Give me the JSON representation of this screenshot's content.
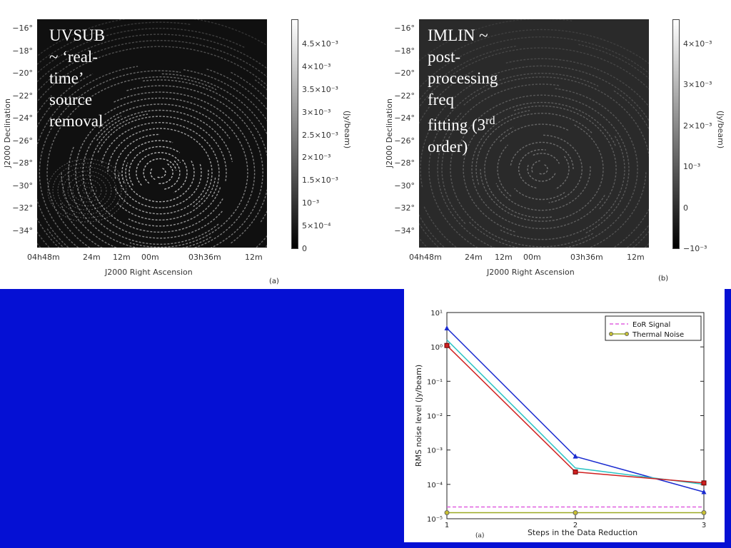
{
  "panel_a": {
    "overlay_line1": "UVSUB ~ ‘real-time’",
    "overlay_line2": "source removal",
    "y_ticks": [
      "−16°",
      "−18°",
      "−20°",
      "−22°",
      "−24°",
      "−26°",
      "−28°",
      "−30°",
      "−32°",
      "−34°"
    ],
    "x_ticks": [
      "04h48m",
      "24m",
      "12m",
      "00m",
      "03h36m",
      "12m"
    ],
    "y_title": "J2000 Declination",
    "x_title": "J2000 Right Ascension",
    "cb_ticks": [
      "4.5×10⁻³",
      "4×10⁻³",
      "3.5×10⁻³",
      "3×10⁻³",
      "2.5×10⁻³",
      "2×10⁻³",
      "1.5×10⁻³",
      "10⁻³",
      "5×10⁻⁴",
      "0"
    ],
    "cb_title": "(Jy/beam)",
    "label": "(a)"
  },
  "panel_b": {
    "overlay_line1": "IMLIN ~ post-processing",
    "overlay_line2_pre": "freq fitting (3",
    "overlay_line2_sup": "rd",
    "overlay_line2_post": " order)",
    "y_ticks": [
      "−16°",
      "−18°",
      "−20°",
      "−22°",
      "−24°",
      "−26°",
      "−28°",
      "−30°",
      "−32°",
      "−34°"
    ],
    "x_ticks": [
      "04h48m",
      "24m",
      "12m",
      "00m",
      "03h36m",
      "12m"
    ],
    "y_title": "J2000 Declination",
    "x_title": "J2000 Right Ascension",
    "cb_ticks": [
      "4×10⁻³",
      "3×10⁻³",
      "2×10⁻³",
      "10⁻³",
      "0",
      "−10⁻³"
    ],
    "cb_title": "(Jy/beam)",
    "label": "(b)"
  },
  "chart_data": {
    "type": "line",
    "xlabel": "Steps in the Data Reduction",
    "ylabel": "RMS noise level (Jy/beam)",
    "x": [
      1,
      2,
      3
    ],
    "x_ticks": [
      "1",
      "2",
      "3"
    ],
    "y_scale": "log",
    "ylim": [
      1e-05,
      10
    ],
    "y_ticks": [
      "10¹",
      "10⁰",
      "10⁻¹",
      "10⁻²",
      "10⁻³",
      "10⁻⁴",
      "10⁻⁵"
    ],
    "legend_position": "top-right",
    "sublabel": "(a)",
    "series": [
      {
        "name": "",
        "color": "#1a2bd0",
        "marker": "triangle",
        "values": [
          3.5,
          0.00065,
          6e-05
        ]
      },
      {
        "name": "",
        "color": "#2bc4c4",
        "marker": "none",
        "values": [
          1.6,
          0.0003,
          0.0001
        ]
      },
      {
        "name": "",
        "color": "#d02020",
        "marker": "square",
        "values": [
          1.1,
          0.00023,
          0.00011
        ]
      },
      {
        "name": "EoR Signal",
        "color": "#e060e0",
        "marker": "none",
        "dashed": true,
        "values": [
          2.2e-05,
          2.2e-05,
          2.2e-05
        ]
      },
      {
        "name": "Thermal Noise",
        "color": "#9aaa22",
        "marker": "circle",
        "values": [
          1.5e-05,
          1.5e-05,
          1.5e-05
        ]
      }
    ]
  }
}
